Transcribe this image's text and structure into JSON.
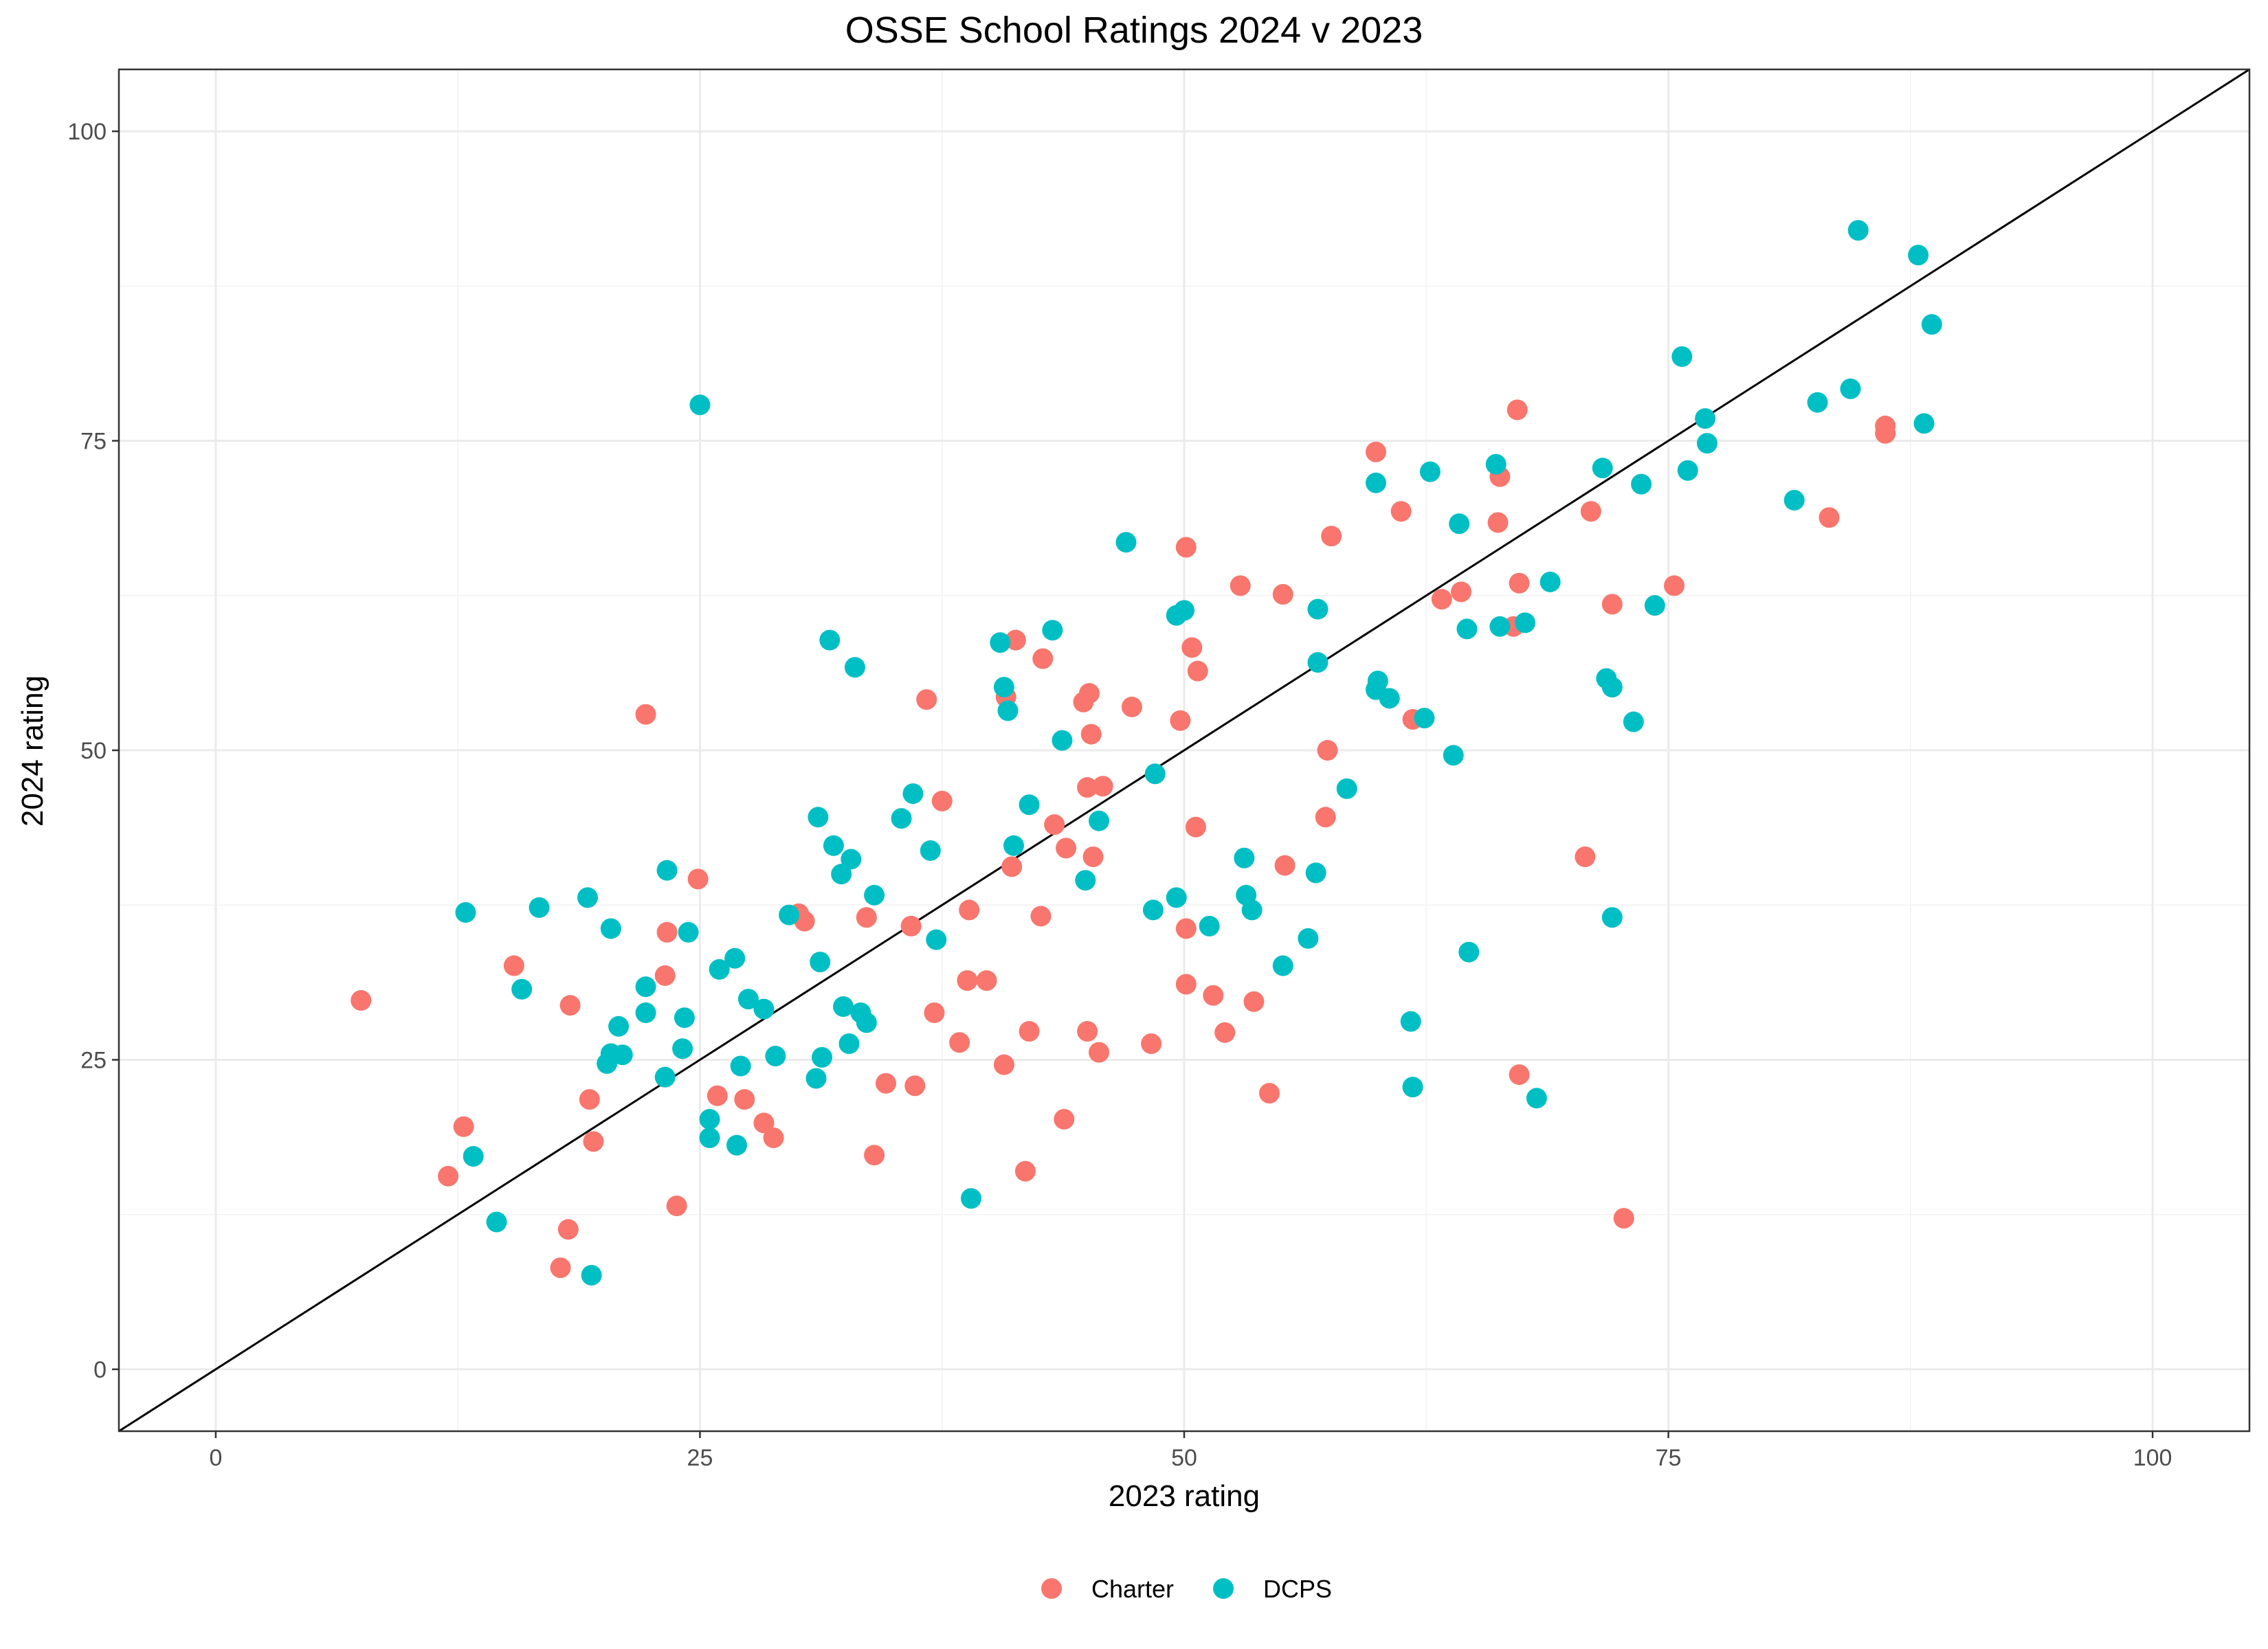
{
  "chart_data": {
    "type": "scatter",
    "title": "OSSE School Ratings 2024 v 2023",
    "xlabel": "2023 rating",
    "ylabel": "2024 rating",
    "xlim": [
      -5,
      105
    ],
    "ylim": [
      -5,
      105
    ],
    "x_ticks": [
      0,
      25,
      50,
      75,
      100
    ],
    "y_ticks": [
      0,
      25,
      50,
      75,
      100
    ],
    "x_tick_labels": [
      "0",
      "25",
      "50",
      "75",
      "100"
    ],
    "y_tick_labels": [
      "0",
      "25",
      "50",
      "75",
      "100"
    ],
    "grid": true,
    "reference_line": "y = x",
    "legend_position": "bottom",
    "series": [
      {
        "name": "Charter",
        "color": "#F8766D",
        "points": [
          [
            7.5,
            29.8
          ],
          [
            12,
            15.6
          ],
          [
            12.8,
            19.6
          ],
          [
            15.4,
            32.6
          ],
          [
            17.8,
            8.2
          ],
          [
            18.2,
            11.3
          ],
          [
            18.3,
            29.4
          ],
          [
            19.3,
            21.8
          ],
          [
            19.5,
            18.4
          ],
          [
            22.2,
            52.9
          ],
          [
            23.2,
            31.8
          ],
          [
            23.3,
            35.3
          ],
          [
            23.8,
            13.2
          ],
          [
            24.9,
            39.6
          ],
          [
            25.9,
            22.1
          ],
          [
            27.3,
            21.8
          ],
          [
            28.3,
            19.9
          ],
          [
            28.8,
            18.7
          ],
          [
            30.1,
            36.8
          ],
          [
            30.4,
            36.2
          ],
          [
            33.6,
            36.5
          ],
          [
            34,
            17.3
          ],
          [
            34.6,
            23.1
          ],
          [
            35.9,
            35.8
          ],
          [
            36.1,
            22.9
          ],
          [
            36.7,
            54.1
          ],
          [
            37.1,
            28.8
          ],
          [
            37.5,
            45.9
          ],
          [
            38.4,
            26.4
          ],
          [
            38.8,
            31.4
          ],
          [
            38.9,
            37.1
          ],
          [
            39.8,
            31.4
          ],
          [
            40.7,
            24.6
          ],
          [
            40.8,
            54.3
          ],
          [
            41.1,
            40.6
          ],
          [
            41.3,
            58.9
          ],
          [
            41.8,
            16.0
          ],
          [
            42,
            27.3
          ],
          [
            42.6,
            36.6
          ],
          [
            42.7,
            57.4
          ],
          [
            43.3,
            44
          ],
          [
            43.8,
            20.2
          ],
          [
            43.9,
            42.1
          ],
          [
            44.8,
            53.9
          ],
          [
            45,
            47
          ],
          [
            45.1,
            54.6
          ],
          [
            45.2,
            51.3
          ],
          [
            45,
            27.3
          ],
          [
            45.3,
            41.4
          ],
          [
            45.6,
            25.6
          ],
          [
            45.8,
            47.1
          ],
          [
            47.3,
            53.5
          ],
          [
            48.3,
            26.3
          ],
          [
            49.8,
            52.4
          ],
          [
            50.1,
            66.4
          ],
          [
            50.1,
            31.1
          ],
          [
            50.1,
            35.6
          ],
          [
            50.4,
            58.3
          ],
          [
            50.6,
            43.8
          ],
          [
            50.7,
            56.4
          ],
          [
            51.5,
            30.2
          ],
          [
            52.1,
            27.2
          ],
          [
            52.9,
            63.3
          ],
          [
            53.6,
            29.7
          ],
          [
            54.4,
            22.3
          ],
          [
            55.1,
            62.6
          ],
          [
            55.2,
            40.7
          ],
          [
            57.3,
            44.6
          ],
          [
            57.4,
            50
          ],
          [
            57.6,
            67.3
          ],
          [
            59.9,
            74.1
          ],
          [
            61.2,
            69.3
          ],
          [
            61.8,
            52.5
          ],
          [
            63.3,
            62.2
          ],
          [
            64.3,
            62.8
          ],
          [
            66.2,
            68.4
          ],
          [
            66.3,
            72.1
          ],
          [
            67,
            60
          ],
          [
            67.2,
            77.5
          ],
          [
            67.3,
            63.5
          ],
          [
            67.3,
            23.8
          ],
          [
            70.7,
            41.4
          ],
          [
            71,
            69.3
          ],
          [
            72.1,
            61.8
          ],
          [
            72.7,
            12.2
          ],
          [
            75.3,
            63.3
          ],
          [
            83.3,
            68.8
          ],
          [
            86.2,
            76.2
          ],
          [
            86.2,
            75.6
          ]
        ]
      },
      {
        "name": "DCPS",
        "color": "#00BFC4",
        "points": [
          [
            12.9,
            36.9
          ],
          [
            13.3,
            17.2
          ],
          [
            14.5,
            11.9
          ],
          [
            15.8,
            30.7
          ],
          [
            16.7,
            37.3
          ],
          [
            19.2,
            38.1
          ],
          [
            19.4,
            7.6
          ],
          [
            20.2,
            24.7
          ],
          [
            20.4,
            25.5
          ],
          [
            20.4,
            35.6
          ],
          [
            20.8,
            27.7
          ],
          [
            21,
            25.4
          ],
          [
            22.2,
            28.8
          ],
          [
            22.2,
            30.9
          ],
          [
            23.2,
            23.6
          ],
          [
            23.3,
            40.3
          ],
          [
            24.1,
            25.9
          ],
          [
            24.2,
            28.4
          ],
          [
            24.4,
            35.3
          ],
          [
            25,
            77.9
          ],
          [
            25.5,
            20.2
          ],
          [
            25.5,
            18.7
          ],
          [
            26,
            32.3
          ],
          [
            26.8,
            33.2
          ],
          [
            26.9,
            18.1
          ],
          [
            27.1,
            24.5
          ],
          [
            27.5,
            29.9
          ],
          [
            28.3,
            29.1
          ],
          [
            28.9,
            25.3
          ],
          [
            29.6,
            36.7
          ],
          [
            31,
            23.5
          ],
          [
            31.1,
            44.6
          ],
          [
            31.2,
            32.9
          ],
          [
            31.3,
            25.2
          ],
          [
            31.7,
            58.9
          ],
          [
            31.9,
            42.3
          ],
          [
            32.3,
            40
          ],
          [
            32.4,
            29.3
          ],
          [
            32.7,
            26.3
          ],
          [
            32.8,
            41.2
          ],
          [
            33,
            56.7
          ],
          [
            33.3,
            28.8
          ],
          [
            33.6,
            28
          ],
          [
            34,
            38.3
          ],
          [
            35.4,
            44.5
          ],
          [
            36,
            46.5
          ],
          [
            36.9,
            41.9
          ],
          [
            37.2,
            34.7
          ],
          [
            39,
            13.8
          ],
          [
            40.5,
            58.7
          ],
          [
            40.7,
            55.1
          ],
          [
            40.9,
            53.2
          ],
          [
            41.2,
            42.3
          ],
          [
            42,
            45.6
          ],
          [
            43.2,
            59.7
          ],
          [
            43.7,
            50.8
          ],
          [
            44.9,
            39.5
          ],
          [
            45.6,
            44.3
          ],
          [
            47,
            66.8
          ],
          [
            48.4,
            37.1
          ],
          [
            48.5,
            48.1
          ],
          [
            49.6,
            38.1
          ],
          [
            49.6,
            60.9
          ],
          [
            50,
            61.3
          ],
          [
            51.3,
            35.8
          ],
          [
            53.1,
            41.3
          ],
          [
            53.2,
            38.3
          ],
          [
            53.5,
            37.1
          ],
          [
            55.1,
            32.6
          ],
          [
            56.4,
            34.8
          ],
          [
            56.8,
            40.1
          ],
          [
            56.9,
            57.1
          ],
          [
            56.9,
            61.4
          ],
          [
            58.4,
            46.9
          ],
          [
            59.9,
            71.6
          ],
          [
            59.9,
            54.9
          ],
          [
            60,
            55.6
          ],
          [
            60.6,
            54.2
          ],
          [
            61.7,
            28.1
          ],
          [
            61.8,
            22.8
          ],
          [
            62.4,
            52.6
          ],
          [
            62.7,
            72.5
          ],
          [
            63.9,
            49.6
          ],
          [
            64.2,
            68.3
          ],
          [
            64.6,
            59.8
          ],
          [
            64.7,
            33.7
          ],
          [
            66.1,
            73.1
          ],
          [
            66.3,
            60
          ],
          [
            67.6,
            60.3
          ],
          [
            68.2,
            21.9
          ],
          [
            68.9,
            63.6
          ],
          [
            71.6,
            72.8
          ],
          [
            71.8,
            55.8
          ],
          [
            72.1,
            36.5
          ],
          [
            72.1,
            55.1
          ],
          [
            73.2,
            52.3
          ],
          [
            73.6,
            71.5
          ],
          [
            74.3,
            61.7
          ],
          [
            75.7,
            81.8
          ],
          [
            76,
            72.6
          ],
          [
            76.9,
            76.8
          ],
          [
            77,
            74.8
          ],
          [
            81.5,
            70.2
          ],
          [
            82.7,
            78.1
          ],
          [
            84.4,
            79.2
          ],
          [
            84.8,
            92
          ],
          [
            87.9,
            90
          ],
          [
            88.2,
            76.4
          ],
          [
            88.6,
            84.4
          ]
        ]
      }
    ]
  }
}
